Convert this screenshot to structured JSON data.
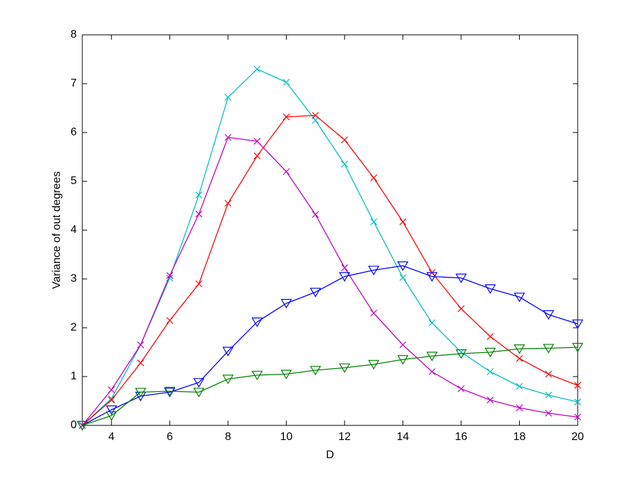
{
  "chart_data": {
    "type": "line",
    "xlabel": "D",
    "ylabel": "Variance of out degrees",
    "x": [
      3,
      4,
      5,
      6,
      7,
      8,
      9,
      10,
      11,
      12,
      13,
      14,
      15,
      16,
      17,
      18,
      19,
      20
    ],
    "series": [
      {
        "color": "#00bfbf",
        "marker": "x",
        "values": [
          0,
          0.55,
          1.65,
          3.02,
          4.72,
          6.72,
          7.3,
          7.03,
          6.25,
          5.35,
          4.17,
          3.03,
          2.1,
          1.5,
          1.1,
          0.8,
          0.62,
          0.48
        ]
      },
      {
        "color": "#ff0000",
        "marker": "x",
        "values": [
          0,
          0.52,
          1.28,
          2.15,
          2.9,
          4.55,
          5.52,
          6.32,
          6.35,
          5.85,
          5.07,
          4.17,
          3.13,
          2.39,
          1.82,
          1.37,
          1.05,
          0.82
        ]
      },
      {
        "color": "#bf00bf",
        "marker": "x",
        "values": [
          0,
          0.73,
          1.65,
          3.07,
          4.33,
          5.9,
          5.82,
          5.2,
          4.32,
          3.23,
          2.3,
          1.65,
          1.1,
          0.75,
          0.52,
          0.36,
          0.25,
          0.17
        ]
      },
      {
        "color": "#0000ff",
        "marker": "triangle-down",
        "values": [
          0,
          0.32,
          0.6,
          0.68,
          0.88,
          1.52,
          2.12,
          2.5,
          2.73,
          3.05,
          3.18,
          3.27,
          3.05,
          3.02,
          2.8,
          2.63,
          2.27,
          2.08
        ]
      },
      {
        "color": "#008000",
        "marker": "triangle-down",
        "values": [
          0,
          0.2,
          0.68,
          0.7,
          0.68,
          0.95,
          1.03,
          1.05,
          1.13,
          1.18,
          1.25,
          1.35,
          1.42,
          1.47,
          1.5,
          1.57,
          1.58,
          1.6
        ]
      }
    ],
    "xlim": [
      3,
      20
    ],
    "xticks": [
      4,
      6,
      8,
      10,
      12,
      14,
      16,
      18,
      20
    ],
    "ylim": [
      0,
      8
    ],
    "yticks": [
      0,
      1,
      2,
      3,
      4,
      5,
      6,
      7,
      8
    ],
    "grid": false
  }
}
